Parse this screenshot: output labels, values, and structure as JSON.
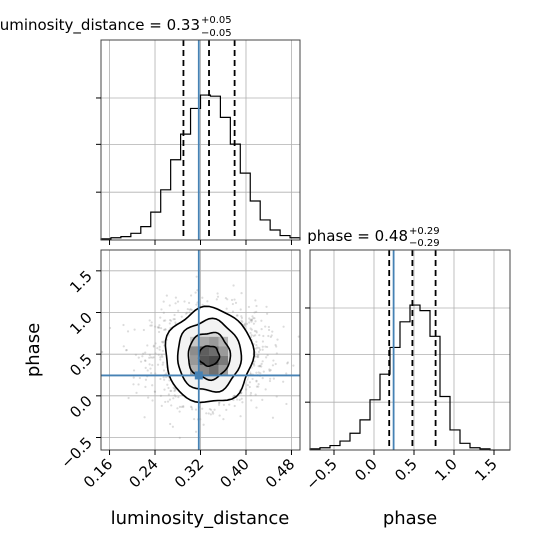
{
  "chart_data": {
    "type": "corner",
    "colors": {
      "truth": "#4682b4",
      "hist": "#000000",
      "grid": "#b0b0b0",
      "scatter": "#9a9a9a"
    },
    "grid": true,
    "truths": {
      "luminosity_distance": 0.317,
      "phase": 0.245
    },
    "panels": [
      {
        "id": "luminosity_distance_hist",
        "type": "histogram",
        "title": "luminosity_distance = 0.33",
        "title_plus": "+0.05",
        "title_minus": "−0.05",
        "xlim": [
          0.145,
          0.495
        ],
        "bin_edges_range": [
          0.145,
          0.495
        ],
        "counts": [
          1,
          2,
          3,
          6,
          12,
          25,
          45,
          72,
          95,
          118,
          130,
          129,
          110,
          86,
          60,
          35,
          18,
          9,
          4,
          2
        ],
        "quantiles": [
          0.29,
          0.335,
          0.38
        ],
        "median": 0.335,
        "truth": 0.317
      },
      {
        "id": "phase_hist",
        "type": "histogram",
        "title": "phase = 0.48",
        "title_plus": "+0.29",
        "title_minus": "−0.29",
        "xlim": [
          -0.8,
          1.7
        ],
        "bin_edges_range": [
          -0.8,
          1.7
        ],
        "counts": [
          1,
          2,
          4,
          8,
          15,
          27,
          45,
          68,
          92,
          115,
          130,
          125,
          102,
          48,
          18,
          6,
          2,
          1,
          0,
          0
        ],
        "quantiles": [
          0.19,
          0.48,
          0.77
        ],
        "median": 0.48,
        "truth": 0.245,
        "xticks": [
          "−0.5",
          "0.0",
          "0.5",
          "1.0",
          "1.5"
        ],
        "xtick_values": [
          -0.5,
          0.0,
          0.5,
          1.0,
          1.5
        ],
        "xlabel": "phase"
      },
      {
        "id": "joint",
        "type": "scatter_contour",
        "xlim": [
          0.145,
          0.495
        ],
        "ylim": [
          -0.65,
          1.75
        ],
        "center": {
          "luminosity_distance": 0.335,
          "phase": 0.48
        },
        "xticks": [
          "0.16",
          "0.24",
          "0.32",
          "0.40",
          "0.48"
        ],
        "xtick_values": [
          0.16,
          0.24,
          0.32,
          0.4,
          0.48
        ],
        "yticks": [
          "−0.5",
          "0.0",
          "0.5",
          "1.0",
          "1.5"
        ],
        "ytick_values": [
          -0.5,
          0.0,
          0.5,
          1.0,
          1.5
        ],
        "xlabel": "luminosity_distance",
        "ylabel": "phase",
        "contours": [
          {
            "rx": 0.018,
            "ry": 0.12
          },
          {
            "rx": 0.037,
            "ry": 0.28
          },
          {
            "rx": 0.056,
            "ry": 0.43
          },
          {
            "rx": 0.077,
            "ry": 0.57
          }
        ]
      }
    ]
  }
}
